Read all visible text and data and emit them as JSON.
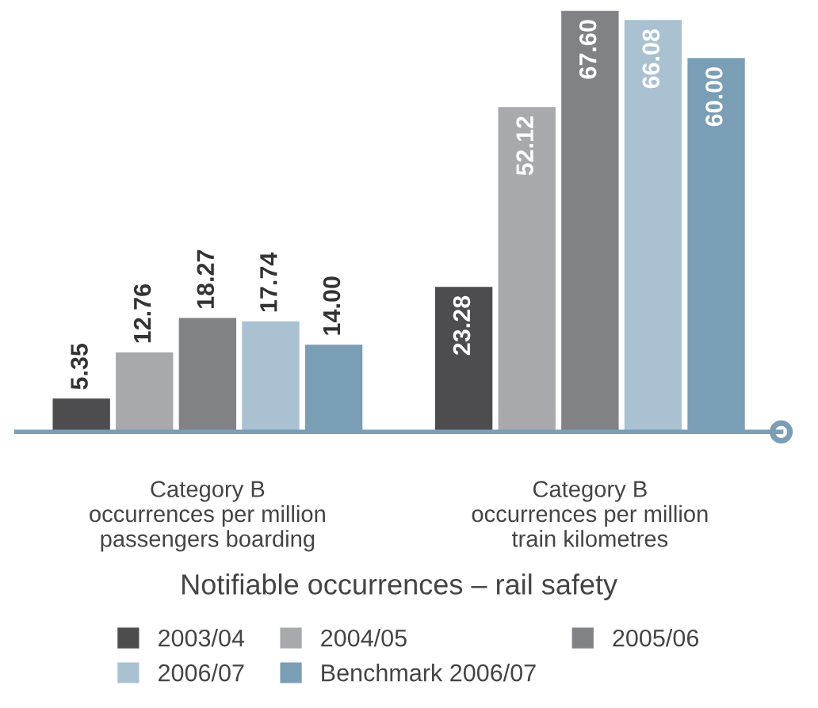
{
  "chart_data": {
    "type": "bar",
    "xlabel": "Notifiable occurrences – rail safety",
    "categories": [
      "Category B\noccurrences per million\npassengers boarding",
      "Category B\noccurrences per million\ntrain kilometres"
    ],
    "series": [
      {
        "name": "2003/04",
        "color": "#4d4d4f",
        "values": [
          5.35,
          23.28
        ],
        "value_labels": [
          "5.35",
          "23.28"
        ]
      },
      {
        "name": "2004/05",
        "color": "#a7a9ac",
        "values": [
          12.76,
          52.12
        ],
        "value_labels": [
          "12.76",
          "52.12"
        ]
      },
      {
        "name": "2005/06",
        "color": "#808285",
        "values": [
          18.27,
          67.6
        ],
        "value_labels": [
          "18.27",
          "67.60"
        ]
      },
      {
        "name": "2006/07",
        "color": "#a9c1d1",
        "values": [
          17.74,
          66.08
        ],
        "value_labels": [
          "17.74",
          "66.08"
        ]
      },
      {
        "name": "Benchmark 2006/07",
        "color": "#7a9eb5",
        "values": [
          14.0,
          60.0
        ],
        "value_labels": [
          "14.00",
          "60.00"
        ]
      }
    ],
    "legend": "bottom",
    "grid": false
  }
}
